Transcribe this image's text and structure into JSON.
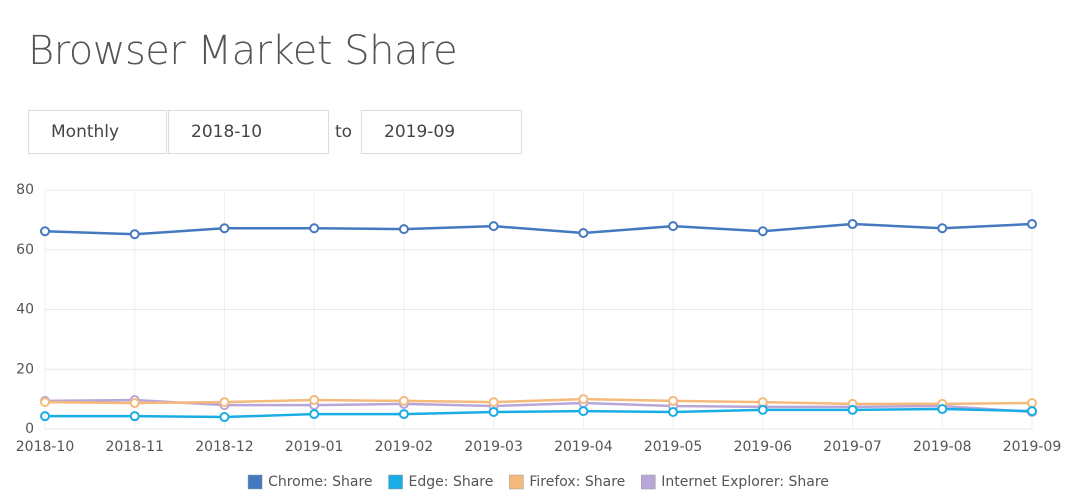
{
  "page": {
    "title": "Browser Market Share",
    "controls": {
      "interval": "Monthly",
      "from": "2018-10",
      "separator": "to",
      "to": "2019-09"
    }
  },
  "chart_data": {
    "type": "line",
    "categories": [
      "2018-10",
      "2018-11",
      "2018-12",
      "2019-01",
      "2019-02",
      "2019-03",
      "2019-04",
      "2019-05",
      "2019-06",
      "2019-07",
      "2019-08",
      "2019-09"
    ],
    "series": [
      {
        "name": "Chrome: Share",
        "color": "#4479c0",
        "values": [
          66.2,
          65.2,
          67.2,
          67.2,
          66.9,
          67.9,
          65.6,
          67.9,
          66.2,
          68.6,
          67.2,
          68.6
        ]
      },
      {
        "name": "Edge: Share",
        "color": "#18ade6",
        "values": [
          4.3,
          4.3,
          4.0,
          5.0,
          5.0,
          5.7,
          6.0,
          5.7,
          6.4,
          6.4,
          6.7,
          6.0
        ]
      },
      {
        "name": "Firefox: Share",
        "color": "#f5b97c",
        "values": [
          9.0,
          8.7,
          9.0,
          9.7,
          9.4,
          9.0,
          10.0,
          9.4,
          9.0,
          8.4,
          8.4,
          8.7
        ]
      },
      {
        "name": "Internet Explorer: Share",
        "color": "#b9a6d8",
        "values": [
          9.4,
          9.7,
          8.0,
          8.0,
          8.4,
          7.7,
          8.7,
          7.7,
          7.4,
          7.4,
          7.7,
          5.7
        ]
      }
    ],
    "ylim": [
      0,
      80
    ],
    "yticks": [
      0,
      20,
      40,
      60,
      80
    ],
    "grid": true,
    "legend": "bottom"
  }
}
